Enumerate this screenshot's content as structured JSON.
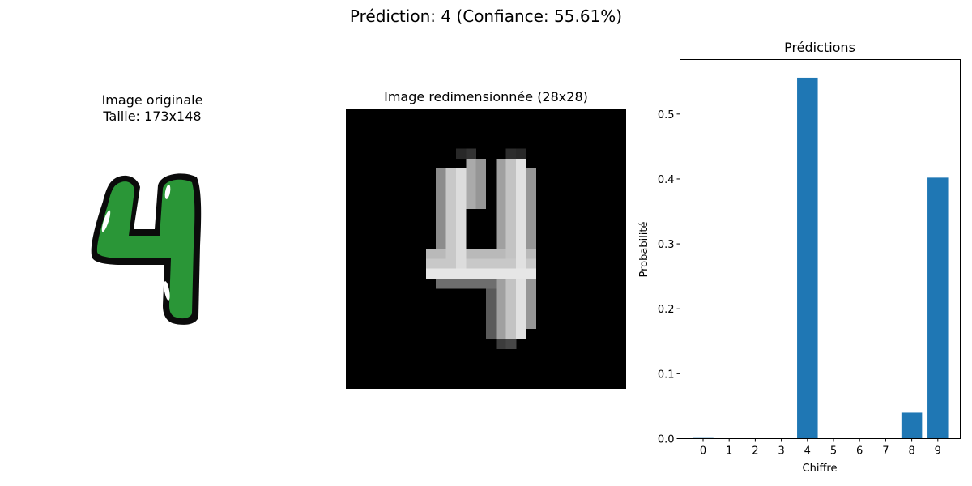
{
  "figure": {
    "suptitle": "Prédiction: 4 (Confiance: 55.61%)"
  },
  "left_panel": {
    "title_line1": "Image originale",
    "title_line2": "Taille: 173x148",
    "digit_glyph": "4",
    "digit_color": "#2a9637"
  },
  "middle_panel": {
    "title": "Image redimensionnée (28x28)"
  },
  "chart_data": {
    "type": "bar",
    "title": "Prédictions",
    "xlabel": "Chiffre",
    "ylabel": "Probabilité",
    "categories": [
      "0",
      "1",
      "2",
      "3",
      "4",
      "5",
      "6",
      "7",
      "8",
      "9"
    ],
    "values": [
      0.001,
      0.0,
      0.0,
      0.0,
      0.556,
      0.0,
      0.0,
      0.0,
      0.04,
      0.402
    ],
    "yticks": [
      0.0,
      0.1,
      0.2,
      0.3,
      0.4,
      0.5
    ],
    "ytick_labels": [
      "0.0",
      "0.1",
      "0.2",
      "0.3",
      "0.4",
      "0.5"
    ],
    "ylim": [
      0,
      0.584
    ],
    "bar_color": "#1f77b4",
    "grid": false
  }
}
